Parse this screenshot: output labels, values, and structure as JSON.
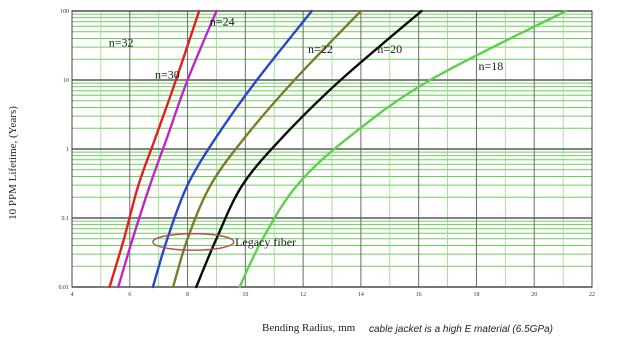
{
  "chart_data": {
    "type": "line",
    "title": "",
    "xlabel": "Bending Radius, mm",
    "ylabel": "10 PPM Lifetime, (Years)",
    "xlim": [
      4,
      22
    ],
    "ylim": [
      0.01,
      100
    ],
    "y_scale": "log",
    "grid": true,
    "x_ticks": [
      "4",
      "6",
      "8",
      "10",
      "12",
      "14",
      "16",
      "18",
      "20",
      "22"
    ],
    "y_ticks": [
      "100",
      "10",
      "1",
      "0.1",
      "0.01"
    ],
    "series": [
      {
        "name": "n=32",
        "color": "#e02020",
        "x": [
          5.3,
          5.8,
          6.3,
          6.9,
          7.6,
          8.4
        ],
        "y": [
          0.01,
          0.05,
          0.3,
          1.5,
          10,
          100
        ]
      },
      {
        "name": "n=30",
        "color": "#c026c6",
        "x": [
          5.6,
          6.1,
          6.7,
          7.3,
          8.0,
          9.0
        ],
        "y": [
          0.01,
          0.05,
          0.3,
          1.5,
          10,
          100
        ]
      },
      {
        "name": "n=24",
        "color": "#2b45c8",
        "x": [
          6.8,
          7.3,
          8.0,
          9.0,
          10.4,
          12.3
        ],
        "y": [
          0.01,
          0.05,
          0.3,
          1.5,
          10,
          100
        ]
      },
      {
        "name": "n=22",
        "color": "#7d7a2a",
        "x": [
          7.5,
          8.0,
          8.8,
          10.0,
          11.7,
          14.0
        ],
        "y": [
          0.01,
          0.05,
          0.3,
          1.5,
          10,
          100
        ]
      },
      {
        "name": "n=20",
        "color": "#0a0a0a",
        "x": [
          8.3,
          9.0,
          9.9,
          11.3,
          13.3,
          16.1
        ],
        "y": [
          0.01,
          0.05,
          0.3,
          1.5,
          10,
          100
        ]
      },
      {
        "name": "n=18",
        "color": "#5fcf4c",
        "x": [
          9.8,
          10.6,
          11.8,
          13.6,
          16.4,
          21.1
        ],
        "y": [
          0.01,
          0.05,
          0.3,
          1.5,
          10,
          100
        ]
      }
    ],
    "series_label_anchors": [
      {
        "name": "n=32",
        "x": 5.7,
        "y": 35
      },
      {
        "name": "n=30",
        "x": 7.3,
        "y": 12
      },
      {
        "name": "n=24",
        "x": 9.2,
        "y": 70
      },
      {
        "name": "n=22",
        "x": 12.6,
        "y": 28
      },
      {
        "name": "n=20",
        "x": 15.0,
        "y": 28
      },
      {
        "name": "n=18",
        "x": 18.5,
        "y": 16
      }
    ],
    "annotations": [
      {
        "text": "Legacy fiber",
        "x": 10.7,
        "y": 0.045,
        "ellipse": {
          "cx": 8.2,
          "cy": 0.045,
          "rx": 1.4,
          "ry_decades": 0.12
        }
      }
    ]
  },
  "note": "cable jacket is a high E material (6.5GPa)"
}
